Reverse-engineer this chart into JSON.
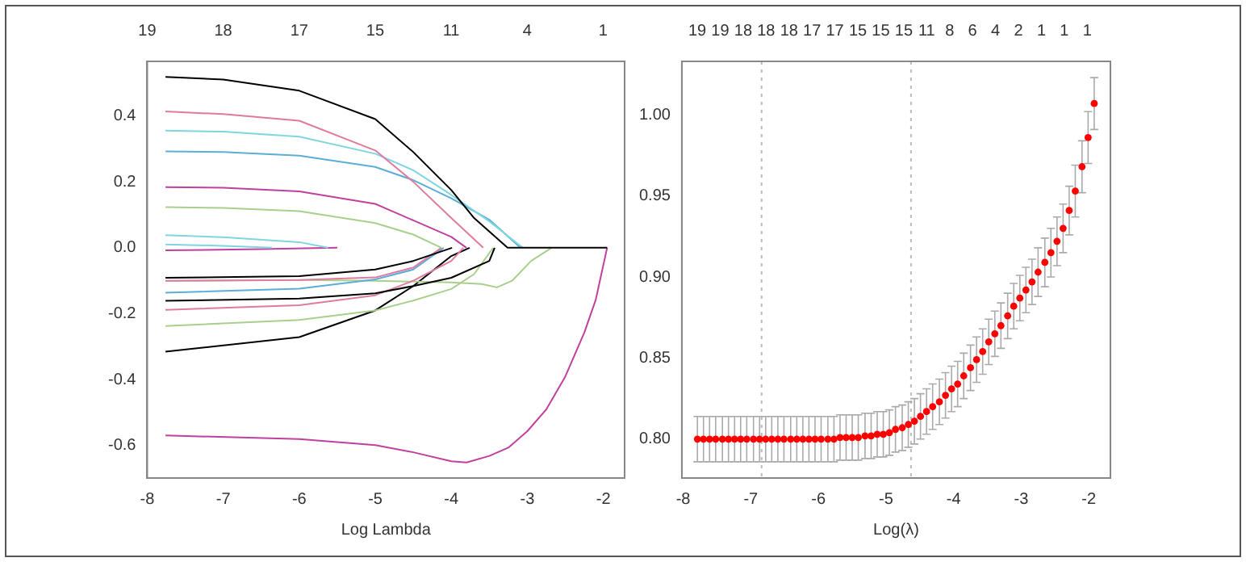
{
  "chart_data": [
    {
      "type": "line",
      "xlabel": "Log Lambda",
      "xlim": [
        -8.0,
        -1.72
      ],
      "ylim": [
        -0.698,
        0.565
      ],
      "xticks": [
        -8,
        -7,
        -6,
        -5,
        -4,
        -3,
        -2
      ],
      "yticks": [
        {
          "value": -0.6,
          "label": "-0.6"
        },
        {
          "value": -0.4,
          "label": "-0.4"
        },
        {
          "value": -0.2,
          "label": "-0.2"
        },
        {
          "value": 0,
          "label": "0.0"
        },
        {
          "value": 0.2,
          "label": "0.2"
        },
        {
          "value": 0.4,
          "label": "0.4"
        }
      ],
      "annotations": [
        "19",
        "18",
        "17",
        "15",
        "11",
        "4",
        "1"
      ],
      "legend": false,
      "marker": "none",
      "line_style": "solid",
      "series": [
        {
          "color": "#000000",
          "x": [
            -7.76,
            -7,
            -6,
            -5,
            -4.5,
            -4,
            -3.7,
            -3.26,
            -1.95
          ],
          "values": [
            0.518,
            0.51,
            0.476,
            0.39,
            0.29,
            0.175,
            0.09,
            0,
            0
          ]
        },
        {
          "color": "#e07ba0",
          "x": [
            -7.76,
            -7,
            -6,
            -5,
            -4.5,
            -4,
            -3.58
          ],
          "values": [
            0.413,
            0.405,
            0.385,
            0.295,
            0.2,
            0.09,
            0
          ]
        },
        {
          "color": "#7fd6e0",
          "x": [
            -7.76,
            -7,
            -6,
            -5,
            -4.5,
            -4,
            -3.5,
            -3.06
          ],
          "values": [
            0.355,
            0.352,
            0.337,
            0.285,
            0.235,
            0.16,
            0.08,
            0
          ]
        },
        {
          "color": "#5aaed8",
          "x": [
            -7.76,
            -7,
            -6,
            -5,
            -4.5,
            -4,
            -3.5,
            -3.09
          ],
          "values": [
            0.292,
            0.29,
            0.279,
            0.245,
            0.205,
            0.15,
            0.085,
            0
          ]
        },
        {
          "color": "#c040a0",
          "x": [
            -7.76,
            -7,
            -6,
            -5,
            -4.5,
            -4,
            -3.8
          ],
          "values": [
            0.184,
            0.182,
            0.171,
            0.133,
            0.083,
            0.033,
            0
          ]
        },
        {
          "color": "#a8d08c",
          "x": [
            -7.76,
            -7,
            -6,
            -5,
            -4.5,
            -4.13
          ],
          "values": [
            0.123,
            0.121,
            0.111,
            0.075,
            0.04,
            0
          ]
        },
        {
          "color": "#7fd6e0",
          "x": [
            -7.76,
            -7,
            -6,
            -5.62
          ],
          "values": [
            0.038,
            0.032,
            0.017,
            0
          ]
        },
        {
          "color": "#7fd6e0",
          "x": [
            -7.76,
            -7,
            -6.36
          ],
          "values": [
            0.01,
            0.006,
            0
          ]
        },
        {
          "color": "#c040a0",
          "x": [
            -7.76,
            -6.5,
            -5.5
          ],
          "values": [
            -0.008,
            -0.004,
            0
          ]
        },
        {
          "color": "#000000",
          "x": [
            -7.76,
            -6,
            -5,
            -4.5,
            -3.99
          ],
          "values": [
            -0.091,
            -0.086,
            -0.066,
            -0.04,
            0
          ]
        },
        {
          "color": "#e07ba0",
          "x": [
            -7.76,
            -6,
            -5,
            -4.5,
            -4.13
          ],
          "values": [
            -0.1,
            -0.098,
            -0.09,
            -0.06,
            0
          ]
        },
        {
          "color": "#5aaed8",
          "x": [
            -7.76,
            -6,
            -5,
            -4.5,
            -4.1
          ],
          "values": [
            -0.136,
            -0.124,
            -0.096,
            -0.066,
            0
          ]
        },
        {
          "color": "#000000",
          "x": [
            -7.76,
            -6,
            -5,
            -4.5,
            -4,
            -3.5,
            -3.43
          ],
          "values": [
            -0.161,
            -0.154,
            -0.138,
            -0.116,
            -0.091,
            -0.04,
            0
          ]
        },
        {
          "color": "#e07ba0",
          "x": [
            -7.76,
            -6,
            -5,
            -4.5,
            -4,
            -3.84
          ],
          "values": [
            -0.188,
            -0.174,
            -0.144,
            -0.1,
            -0.04,
            0
          ]
        },
        {
          "color": "#a8d08c",
          "x": [
            -7.76,
            -6,
            -5,
            -4.5,
            -4,
            -3.7,
            -3.45
          ],
          "values": [
            -0.237,
            -0.219,
            -0.19,
            -0.16,
            -0.125,
            -0.08,
            0
          ]
        },
        {
          "color": "#a8d08c",
          "x": [
            -7.76,
            -6,
            -5,
            -4,
            -3.6,
            -3.4,
            -3.2,
            -2.95,
            -2.68
          ],
          "values": [
            -0.1,
            -0.098,
            -0.1,
            -0.105,
            -0.11,
            -0.12,
            -0.1,
            -0.04,
            0
          ]
        },
        {
          "color": "#000000",
          "x": [
            -7.76,
            -6,
            -5,
            -4.5,
            -4,
            -3.76
          ],
          "values": [
            -0.315,
            -0.271,
            -0.19,
            -0.116,
            -0.025,
            0
          ]
        },
        {
          "color": "#c040a0",
          "x": [
            -7.76,
            -6,
            -5,
            -4.5,
            -4,
            -3.8,
            -3.5,
            -3.25,
            -3,
            -2.75,
            -2.5,
            -2.25,
            -2.1,
            -1.95
          ],
          "values": [
            -0.569,
            -0.58,
            -0.598,
            -0.62,
            -0.647,
            -0.651,
            -0.631,
            -0.606,
            -0.556,
            -0.49,
            -0.39,
            -0.257,
            -0.158,
            0
          ]
        }
      ]
    },
    {
      "type": "scatter",
      "xlabel": "Log(λ)",
      "xlim": [
        -8.02,
        -1.68
      ],
      "ylim": [
        0.776,
        1.033
      ],
      "xticks": [
        -8,
        -7,
        -6,
        -5,
        -4,
        -3,
        -2
      ],
      "yticks": [
        {
          "value": 0.8,
          "label": "0.80"
        },
        {
          "value": 0.85,
          "label": "0.85"
        },
        {
          "value": 0.9,
          "label": "0.90"
        },
        {
          "value": 0.95,
          "label": "0.95"
        },
        {
          "value": 1,
          "label": "1.00"
        }
      ],
      "annotations": [
        "19",
        "19",
        "18",
        "18",
        "18",
        "17",
        "17",
        "15",
        "15",
        "15",
        "11",
        "8",
        "6",
        "4",
        "2",
        "1",
        "1",
        "1"
      ],
      "legend": false,
      "marker": "circle",
      "ref_lines": [
        {
          "axis": "x",
          "value": -6.84,
          "color": "#bbbbbb",
          "line_style": "dotted"
        },
        {
          "axis": "x",
          "value": -4.63,
          "color": "#bbbbbb",
          "line_style": "dotted"
        }
      ],
      "series": [
        {
          "color": "#ff0000",
          "x": [
            -7.79,
            -7.7,
            -7.61,
            -7.52,
            -7.42,
            -7.33,
            -7.24,
            -7.15,
            -7.06,
            -6.96,
            -6.87,
            -6.78,
            -6.69,
            -6.6,
            -6.51,
            -6.41,
            -6.32,
            -6.23,
            -6.14,
            -6.05,
            -5.96,
            -5.86,
            -5.77,
            -5.68,
            -5.59,
            -5.5,
            -5.41,
            -5.31,
            -5.22,
            -5.13,
            -5.04,
            -4.95,
            -4.86,
            -4.76,
            -4.67,
            -4.58,
            -4.49,
            -4.4,
            -4.31,
            -4.21,
            -4.12,
            -4.03,
            -3.94,
            -3.85,
            -3.75,
            -3.66,
            -3.57,
            -3.48,
            -3.39,
            -3.3,
            -3.2,
            -3.11,
            -3.02,
            -2.93,
            -2.84,
            -2.75,
            -2.65,
            -2.56,
            -2.47,
            -2.38,
            -2.29,
            -2.2,
            -2.1,
            -2.01,
            -1.92
          ],
          "values": [
            0.8,
            0.8,
            0.8,
            0.8,
            0.8,
            0.8,
            0.8,
            0.8,
            0.8,
            0.8,
            0.8,
            0.8,
            0.8,
            0.8,
            0.8,
            0.8,
            0.8,
            0.8,
            0.8,
            0.8,
            0.8,
            0.8,
            0.8,
            0.801,
            0.801,
            0.801,
            0.801,
            0.802,
            0.802,
            0.803,
            0.803,
            0.804,
            0.806,
            0.807,
            0.809,
            0.811,
            0.814,
            0.817,
            0.82,
            0.823,
            0.827,
            0.831,
            0.834,
            0.839,
            0.844,
            0.849,
            0.854,
            0.86,
            0.865,
            0.87,
            0.876,
            0.882,
            0.887,
            0.892,
            0.897,
            0.903,
            0.909,
            0.915,
            0.922,
            0.93,
            0.941,
            0.953,
            0.968,
            0.986,
            1.007
          ],
          "errors": [
            0.014,
            0.014,
            0.014,
            0.014,
            0.014,
            0.014,
            0.014,
            0.014,
            0.014,
            0.014,
            0.014,
            0.014,
            0.014,
            0.014,
            0.014,
            0.014,
            0.014,
            0.014,
            0.014,
            0.014,
            0.014,
            0.014,
            0.014,
            0.014,
            0.014,
            0.014,
            0.014,
            0.014,
            0.014,
            0.014,
            0.014,
            0.014,
            0.014,
            0.014,
            0.014,
            0.014,
            0.014,
            0.014,
            0.014,
            0.014,
            0.014,
            0.014,
            0.014,
            0.014,
            0.014,
            0.014,
            0.014,
            0.014,
            0.014,
            0.014,
            0.014,
            0.014,
            0.014,
            0.014,
            0.014,
            0.015,
            0.015,
            0.015,
            0.015,
            0.015,
            0.015,
            0.016,
            0.016,
            0.016,
            0.016
          ]
        }
      ]
    }
  ]
}
